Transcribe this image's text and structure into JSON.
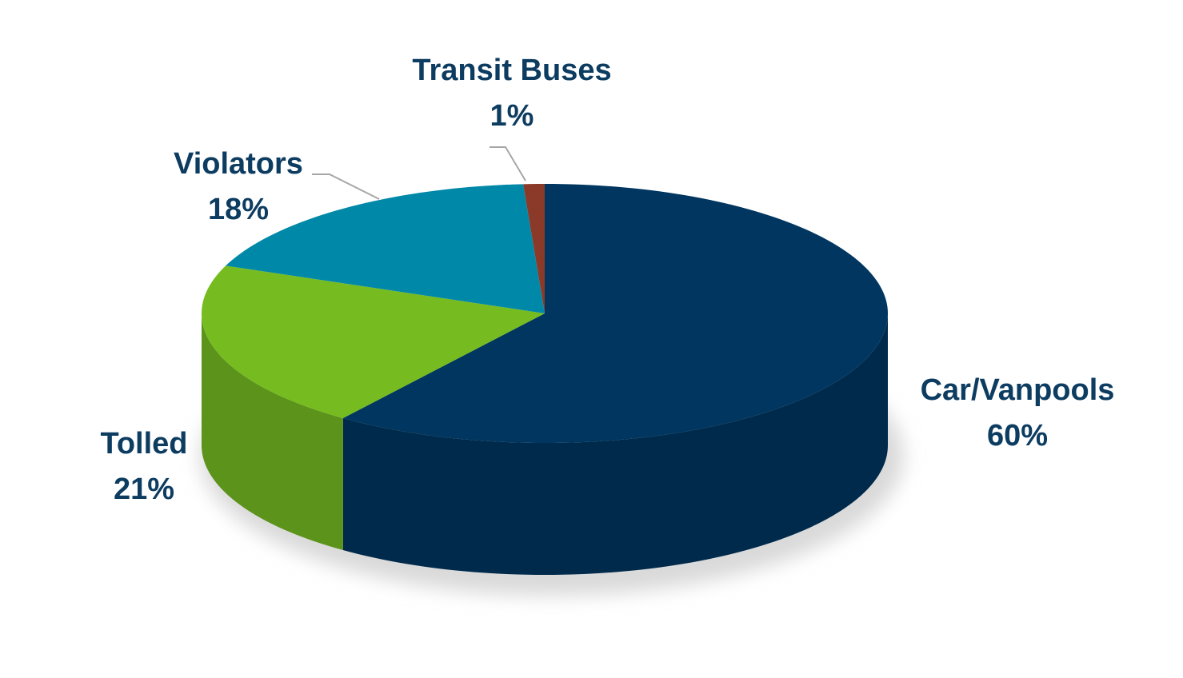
{
  "chart_data": {
    "type": "pie",
    "categories": [
      "Car/Vanpools",
      "Tolled",
      "Violators",
      "Transit Buses"
    ],
    "values": [
      60,
      21,
      18,
      1
    ],
    "value_labels": [
      "60%",
      "21%",
      "18%",
      "1%"
    ],
    "colors": [
      "#003660",
      "#76bc21",
      "#0088a8",
      "#8b3a2a"
    ]
  }
}
